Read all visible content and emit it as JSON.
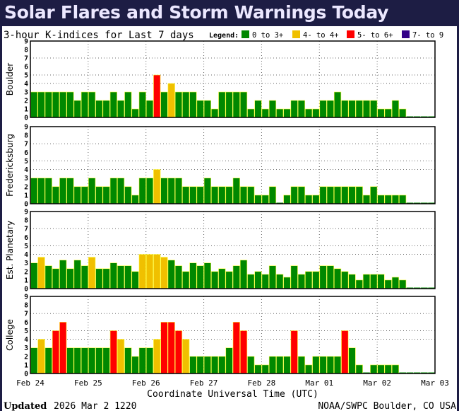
{
  "page_title": "Solar Flares and Storm Warnings Today",
  "chart_data": {
    "type": "bar",
    "title": "3-hour K-indices for Last 7 days",
    "legend_label": "Legend:",
    "legend": [
      {
        "label": "0 to 3+",
        "color": "#008800"
      },
      {
        "label": "4- to 4+",
        "color": "#f0c000"
      },
      {
        "label": "5- to 6+",
        "color": "#ff0000"
      },
      {
        "label": "7- to 9",
        "color": "#330088"
      }
    ],
    "xlabel": "Coordinate Universal Time (UTC)",
    "x_ticks": [
      "Feb 24",
      "Feb 25",
      "Feb 26",
      "Feb 27",
      "Feb 28",
      "Mar 01",
      "Mar 02",
      "Mar 03"
    ],
    "y_ticks": [
      "0",
      "1",
      "2",
      "3",
      "4",
      "5",
      "6",
      "7",
      "8",
      "9"
    ],
    "ylim": [
      0,
      9
    ],
    "grid": true,
    "interval_hours": 3,
    "series": [
      {
        "name": "Boulder",
        "values": [
          3,
          3,
          3,
          3,
          3,
          3,
          2,
          3,
          3,
          2,
          2,
          3,
          2,
          3,
          1,
          3,
          2,
          5,
          3,
          4,
          3,
          3,
          3,
          2,
          2,
          1,
          3,
          3,
          3,
          3,
          1,
          2,
          1,
          2,
          1,
          1,
          2,
          2,
          1,
          1,
          2,
          2,
          3,
          2,
          2,
          2,
          2,
          2,
          1,
          1,
          2,
          1,
          0,
          0,
          0,
          0
        ]
      },
      {
        "name": "Fredericksburg",
        "values": [
          3,
          3,
          3,
          2,
          3,
          3,
          2,
          2,
          3,
          2,
          2,
          3,
          3,
          2,
          1,
          3,
          3,
          4,
          3,
          3,
          3,
          2,
          2,
          2,
          3,
          2,
          2,
          2,
          3,
          2,
          2,
          1,
          1,
          2,
          0,
          1,
          2,
          2,
          1,
          1,
          2,
          2,
          2,
          2,
          2,
          2,
          1,
          2,
          1,
          1,
          1,
          1,
          0,
          0,
          0,
          0
        ]
      },
      {
        "name": "Est. Planetary",
        "values": [
          3,
          3.67,
          2.67,
          2.33,
          3.33,
          2.33,
          3.33,
          2.67,
          3.67,
          2.33,
          2.33,
          3,
          2.67,
          2.67,
          2,
          4,
          4,
          4,
          3.67,
          3.33,
          2.67,
          2,
          3,
          2.67,
          3,
          2,
          2.33,
          2,
          2.67,
          3.33,
          1.67,
          2,
          1.67,
          2.67,
          1.67,
          1.33,
          2.67,
          1.67,
          2,
          2,
          2.67,
          2.67,
          2.33,
          2,
          1.67,
          1,
          1.67,
          1.67,
          1.67,
          1,
          1.33,
          1,
          0,
          0,
          0,
          0
        ]
      },
      {
        "name": "College",
        "values": [
          3,
          4,
          3,
          5,
          6,
          3,
          3,
          3,
          3,
          3,
          3,
          5,
          4,
          3,
          2,
          3,
          3,
          4,
          6,
          6,
          5,
          4,
          2,
          2,
          2,
          2,
          2,
          3,
          6,
          5,
          2,
          1,
          1,
          2,
          2,
          2,
          5,
          2,
          1,
          2,
          2,
          2,
          2,
          5,
          3,
          1,
          0,
          1,
          1,
          1,
          1,
          0,
          0,
          0,
          0,
          0
        ]
      }
    ]
  },
  "footer": {
    "updated_label": "Updated",
    "updated_value": "2026 Mar  2 1220",
    "source": "NOAA/SWPC Boulder, CO USA"
  }
}
